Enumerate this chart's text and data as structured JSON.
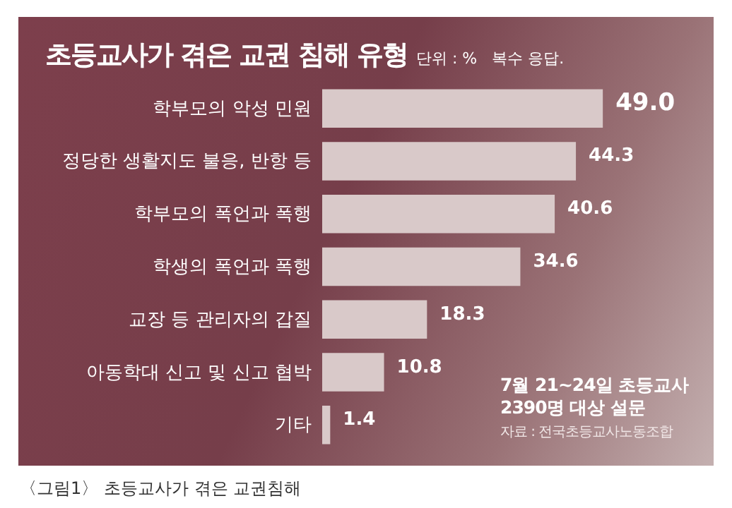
{
  "chart_data": {
    "type": "bar",
    "orientation": "horizontal",
    "title": "초등교사가 겪은 교권 침해 유형",
    "subtitle": "단위 : %   복수 응답.",
    "categories": [
      "학부모의 악성 민원",
      "정당한 생활지도 불응, 반항 등",
      "학부모의 폭언과 폭행",
      "학생의 폭언과 폭행",
      "교장 등 관리자의 갑질",
      "아동학대 신고 및 신고 협박",
      "기타"
    ],
    "values": [
      49.0,
      44.3,
      40.6,
      34.6,
      18.3,
      10.8,
      1.4
    ],
    "value_labels": [
      "49.0",
      "44.3",
      "40.6",
      "34.6",
      "18.3",
      "10.8",
      "1.4"
    ],
    "color": "#d9c9c9",
    "annotations": [
      "7월 21~24일 초등교사",
      "2390명 대상 설문",
      "자료 : 전국초등교사노동조합",
      "〈그림1〉 초등교사가 겪은 교권침해"
    ]
  }
}
